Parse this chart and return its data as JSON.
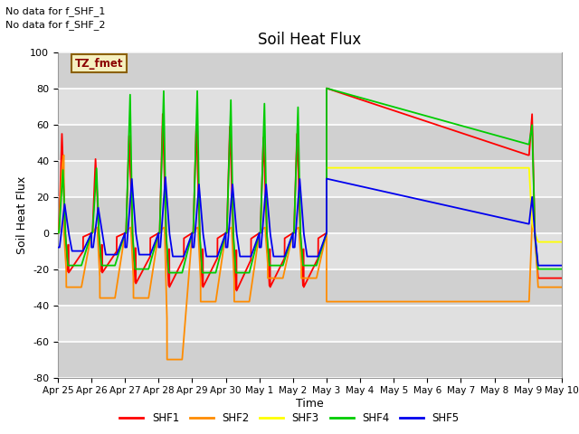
{
  "title": "Soil Heat Flux",
  "xlabel": "Time",
  "ylabel": "Soil Heat Flux",
  "ylim": [
    -80,
    100
  ],
  "yticks": [
    -80,
    -60,
    -40,
    -20,
    0,
    20,
    40,
    60,
    80,
    100
  ],
  "xtick_labels": [
    "Apr 25",
    "Apr 26",
    "Apr 27",
    "Apr 28",
    "Apr 29",
    "Apr 30",
    "May 1",
    "May 2",
    "May 3",
    "May 4",
    "May 5",
    "May 6",
    "May 7",
    "May 8",
    "May 9",
    "May 10"
  ],
  "annotation1": "No data for f_SHF_1",
  "annotation2": "No data for f_SHF_2",
  "tz_label": "TZ_fmet",
  "colors": {
    "SHF1": "#ff0000",
    "SHF2": "#ff8c00",
    "SHF3": "#ffff00",
    "SHF4": "#00cc00",
    "SHF5": "#0000ee"
  },
  "bg_color": "#d8d8d8",
  "plot_bg": "#e8e8e8",
  "fig_bg": "#ffffff",
  "legend_labels": [
    "SHF1",
    "SHF2",
    "SHF3",
    "SHF4",
    "SHF5"
  ]
}
